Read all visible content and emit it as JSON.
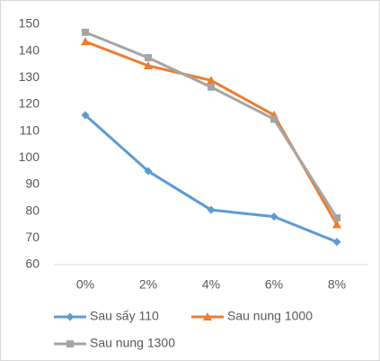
{
  "chart_data": {
    "type": "line",
    "categories": [
      "0%",
      "2%",
      "4%",
      "6%",
      "8%"
    ],
    "series": [
      {
        "name": "Sau sấy 110",
        "color": "#5b9bd5",
        "marker": "diamond",
        "values": [
          116,
          95,
          80.5,
          78,
          68.5
        ]
      },
      {
        "name": "Sau nung 1000",
        "color": "#ed7d31",
        "marker": "triangle",
        "values": [
          143.5,
          134.5,
          129,
          116,
          75
        ]
      },
      {
        "name": "Sau nung 1300",
        "color": "#a5a5a5",
        "marker": "square",
        "values": [
          147,
          137.5,
          126.5,
          114.5,
          77.5
        ]
      }
    ],
    "ylim": [
      60,
      150
    ],
    "yticks": [
      60,
      70,
      80,
      90,
      100,
      110,
      120,
      130,
      140,
      150
    ],
    "grid": false,
    "legend": "bottom"
  }
}
